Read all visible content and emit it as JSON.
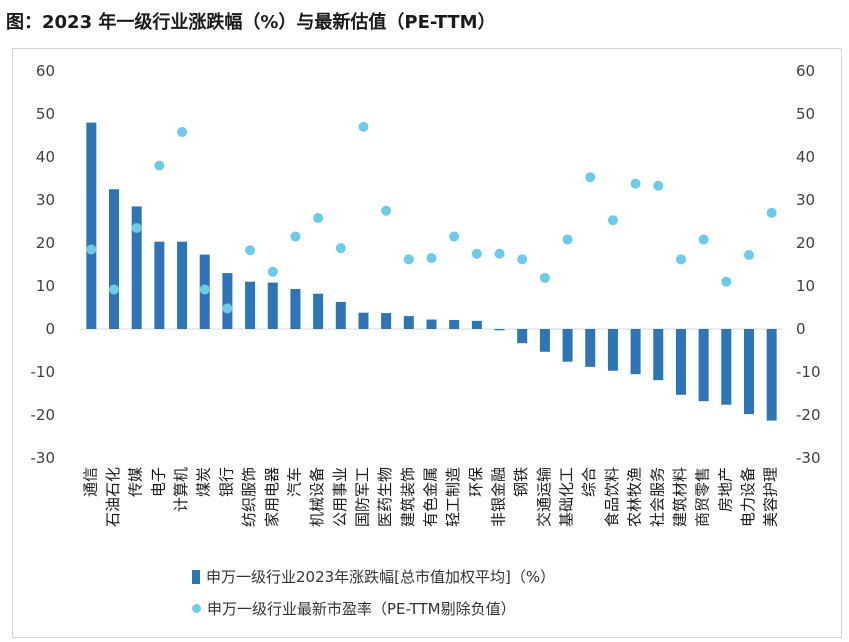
{
  "title": "图：2023 年一级行业涨跌幅（%）与最新估值（PE-TTM）",
  "colors": {
    "bar": "#2e75b6",
    "dot": "#6ccbe8",
    "axis": "#d9d9d9"
  },
  "chart_data": {
    "type": "bar",
    "categories": [
      "通信",
      "石油石化",
      "传媒",
      "电子",
      "计算机",
      "煤炭",
      "银行",
      "纺织服饰",
      "家用电器",
      "汽车",
      "机械设备",
      "公用事业",
      "国防军工",
      "医药生物",
      "建筑装饰",
      "有色金属",
      "轻工制造",
      "环保",
      "非银金融",
      "钢铁",
      "交通运输",
      "基础化工",
      "综合",
      "食品饮料",
      "农林牧渔",
      "社会服务",
      "建筑材料",
      "商贸零售",
      "房地产",
      "电力设备",
      "美容护理"
    ],
    "series": [
      {
        "name": "申万一级行业2023年涨跌幅[总市值加权平均]（%）",
        "type": "bar",
        "values": [
          48.0,
          32.5,
          28.5,
          20.3,
          20.3,
          17.3,
          13.0,
          11.0,
          10.8,
          9.3,
          8.2,
          6.3,
          3.8,
          3.7,
          3.0,
          2.2,
          2.1,
          1.9,
          -0.3,
          -3.3,
          -5.3,
          -7.6,
          -8.8,
          -9.7,
          -10.5,
          -11.9,
          -15.3,
          -16.8,
          -17.6,
          -19.8,
          -21.3
        ]
      },
      {
        "name": "申万一级行业最新市盈率（PE-TTM剔除负值）",
        "type": "scatter",
        "values": [
          18.5,
          9.2,
          23.5,
          38.0,
          45.8,
          9.2,
          4.8,
          18.3,
          13.3,
          21.5,
          25.8,
          18.8,
          47.0,
          27.5,
          16.2,
          16.5,
          21.5,
          17.5,
          17.5,
          16.2,
          11.9,
          20.8,
          35.3,
          25.3,
          33.8,
          33.3,
          16.2,
          20.8,
          11.0,
          17.2,
          27.0
        ]
      }
    ],
    "ylim": [
      -30,
      60
    ],
    "yticks": [
      60,
      50,
      40,
      30,
      20,
      10,
      0,
      -10,
      -20,
      -30
    ],
    "grid": false,
    "legend": "bottom"
  }
}
